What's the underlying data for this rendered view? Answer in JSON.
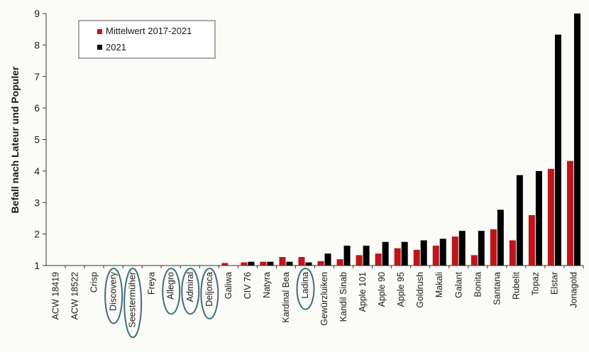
{
  "chart_data": {
    "type": "bar",
    "ylabel": "Befall nach Lateur und Populer",
    "xlabel": "",
    "title": "",
    "ylim": [
      1,
      9
    ],
    "yticks": [
      "1",
      "2",
      "3",
      "4",
      "5",
      "6",
      "7",
      "8",
      "9"
    ],
    "categories": [
      "ACW 18419",
      "ACW 18522",
      "Crisp",
      "Discovery",
      "Seestermüher",
      "Freya",
      "Allegro",
      "Admiral",
      "Deljonca",
      "Galiwa",
      "CIV 76",
      "Natyra",
      "Kardinal Bea",
      "Ladina",
      "Gewürzluiken",
      "Kandil Sinab",
      "Apple 101",
      "Apple 90",
      "Apple 95",
      "Goldrush",
      "Makali",
      "Galant",
      "Bonita",
      "Santana",
      "Rubelit",
      "Topaz",
      "Elstar",
      "Jonagold"
    ],
    "circled_categories": [
      "Discovery",
      "Seestermüher",
      "Allegro",
      "Admiral",
      "Deljonca",
      "Ladina"
    ],
    "legend_position": "top-left",
    "grid": false,
    "series": [
      {
        "name": "Mittelwert 2017-2021",
        "color": "#c0141b",
        "values": [
          1,
          1,
          1,
          1,
          1,
          1,
          1,
          1,
          1,
          1.08,
          1.1,
          1.12,
          1.27,
          1.27,
          1.14,
          1.2,
          1.33,
          1.38,
          1.55,
          1.5,
          1.63,
          1.92,
          1.33,
          2.15,
          1.8,
          2.6,
          4.07,
          4.32
        ]
      },
      {
        "name": "2021",
        "color": "#000000",
        "values": [
          1,
          1,
          1,
          1,
          1,
          1,
          1,
          1,
          1,
          1,
          1.12,
          1.12,
          1.12,
          1.1,
          1.38,
          1.63,
          1.63,
          1.75,
          1.75,
          1.8,
          1.85,
          2.1,
          2.1,
          2.77,
          3.87,
          4.0,
          8.33,
          9.0
        ]
      }
    ]
  }
}
